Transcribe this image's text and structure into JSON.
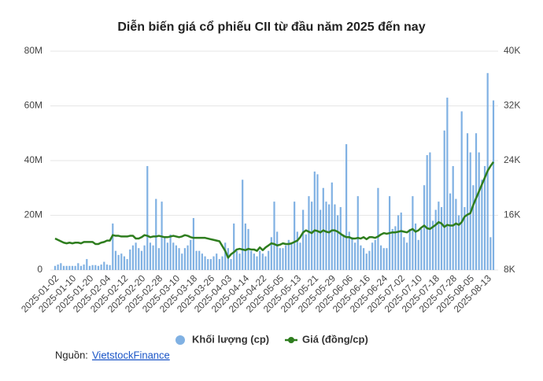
{
  "chart_data": {
    "type": "combo",
    "title": "Diễn biến giá cổ phiếu CII từ đầu năm 2025 đến nay",
    "categories": [
      "2025-01-02",
      null,
      null,
      null,
      null,
      null,
      "2025-01-10",
      null,
      null,
      null,
      null,
      null,
      "2025-01-20",
      null,
      null,
      null,
      null,
      null,
      "2025-02-04",
      null,
      null,
      null,
      null,
      null,
      "2025-02-12",
      null,
      null,
      null,
      null,
      null,
      "2025-02-20",
      null,
      null,
      null,
      null,
      null,
      "2025-02-28",
      null,
      null,
      null,
      null,
      null,
      "2025-03-10",
      null,
      null,
      null,
      null,
      null,
      "2025-03-18",
      null,
      null,
      null,
      null,
      null,
      "2025-03-26",
      null,
      null,
      null,
      null,
      null,
      "2025-04-03",
      null,
      null,
      null,
      null,
      null,
      "2025-04-14",
      null,
      null,
      null,
      null,
      null,
      "2025-04-22",
      null,
      null,
      null,
      null,
      null,
      "2025-05-05",
      null,
      null,
      null,
      null,
      null,
      "2025-05-13",
      null,
      null,
      null,
      null,
      null,
      "2025-05-21",
      null,
      null,
      null,
      null,
      null,
      "2025-05-29",
      null,
      null,
      null,
      null,
      null,
      "2025-06-06",
      null,
      null,
      null,
      null,
      null,
      "2025-06-16",
      null,
      null,
      null,
      null,
      null,
      "2025-06-24",
      null,
      null,
      null,
      null,
      null,
      "2025-07-02",
      null,
      null,
      null,
      null,
      null,
      "2025-07-10",
      null,
      null,
      null,
      null,
      null,
      "2025-07-18",
      null,
      null,
      null,
      null,
      null,
      "2025-07-28",
      null,
      null,
      null,
      null,
      null,
      "2025-08-05",
      null,
      null,
      null,
      null,
      null,
      "2025-08-13",
      null,
      null
    ],
    "series": [
      {
        "name": "Khối lượng (cp)",
        "type": "bar",
        "color": "#80b1e3",
        "values": [
          1500000,
          2000000,
          2500000,
          1500000,
          1500000,
          1500000,
          1500000,
          1500000,
          2500000,
          1500000,
          2000000,
          4000000,
          1500000,
          1800000,
          1800000,
          1500000,
          2000000,
          3000000,
          2000000,
          1800000,
          17000000,
          7000000,
          5500000,
          6000000,
          5000000,
          4000000,
          7500000,
          9000000,
          10000000,
          8000000,
          7000000,
          9000000,
          38000000,
          10000000,
          9000000,
          26000000,
          8000000,
          25000000,
          12000000,
          10000000,
          13000000,
          10000000,
          9000000,
          8000000,
          6000000,
          8000000,
          9000000,
          11000000,
          19000000,
          7000000,
          7000000,
          6000000,
          5000000,
          4000000,
          4000000,
          5000000,
          6000000,
          4000000,
          5000000,
          10000000,
          8000000,
          4000000,
          17000000,
          7000000,
          6000000,
          33000000,
          17000000,
          15000000,
          7000000,
          6000000,
          5000000,
          7000000,
          6000000,
          5000000,
          7000000,
          12000000,
          25000000,
          14000000,
          8000000,
          8000000,
          9000000,
          11000000,
          10000000,
          25000000,
          14000000,
          10000000,
          22000000,
          13000000,
          27000000,
          25000000,
          36000000,
          35000000,
          22000000,
          30000000,
          25000000,
          24000000,
          32000000,
          24000000,
          20000000,
          23000000,
          13000000,
          46000000,
          14000000,
          12000000,
          10000000,
          27000000,
          9000000,
          8000000,
          6000000,
          7000000,
          10000000,
          11000000,
          30000000,
          9000000,
          8000000,
          8000000,
          27000000,
          15000000,
          16000000,
          20000000,
          21000000,
          12000000,
          10000000,
          15000000,
          27000000,
          17000000,
          11000000,
          15000000,
          31000000,
          42000000,
          43000000,
          18000000,
          22000000,
          25000000,
          23000000,
          51000000,
          63000000,
          28000000,
          38000000,
          26000000,
          20000000,
          58000000,
          23000000,
          50000000,
          43000000,
          31000000,
          50000000,
          43000000,
          33000000,
          38000000,
          72000000,
          12000000,
          62000000
        ]
      },
      {
        "name": "Giá (đồng/cp)",
        "type": "line",
        "axis": "y2",
        "color": "#2e7d1e",
        "values": [
          12600,
          12400,
          12200,
          12000,
          11900,
          12000,
          11900,
          12000,
          12000,
          11900,
          12100,
          12100,
          12100,
          12100,
          11800,
          11800,
          12000,
          12100,
          12300,
          12300,
          13100,
          13000,
          13000,
          12900,
          12900,
          12900,
          13000,
          13000,
          12600,
          12600,
          12800,
          13100,
          13000,
          12800,
          12900,
          12900,
          13000,
          12900,
          12800,
          12800,
          12900,
          13000,
          12900,
          12800,
          12900,
          13100,
          13000,
          12800,
          12700,
          12700,
          12700,
          12700,
          12700,
          12600,
          12500,
          12400,
          12300,
          12200,
          11500,
          10800,
          9800,
          10300,
          10600,
          11000,
          11100,
          11000,
          10900,
          11100,
          11000,
          11000,
          10800,
          11300,
          10900,
          11300,
          11600,
          11900,
          11800,
          11600,
          11700,
          11900,
          11800,
          11800,
          11900,
          12100,
          12300,
          12800,
          13500,
          13800,
          13600,
          13400,
          13800,
          13700,
          13500,
          13800,
          13600,
          13500,
          13800,
          13800,
          13600,
          13300,
          13000,
          12800,
          12800,
          12600,
          12600,
          12700,
          12600,
          12800,
          12500,
          12800,
          12800,
          12700,
          12900,
          13200,
          13400,
          13300,
          13400,
          13500,
          13500,
          13600,
          13700,
          13600,
          13500,
          13800,
          14000,
          13600,
          13800,
          14200,
          14500,
          14100,
          14000,
          14300,
          14600,
          15000,
          14800,
          14300,
          14600,
          14500,
          14500,
          14800,
          14600,
          15000,
          15800,
          16100,
          16300,
          17500,
          18500,
          19500,
          20500,
          21500,
          22500,
          23200,
          23800
        ]
      }
    ],
    "ylim": [
      0,
      80000000
    ],
    "yticks": [
      {
        "value": 0,
        "label": "0"
      },
      {
        "value": 20000000,
        "label": "20M"
      },
      {
        "value": 40000000,
        "label": "40M"
      },
      {
        "value": 60000000,
        "label": "60M"
      },
      {
        "value": 80000000,
        "label": "80M"
      }
    ],
    "y2lim": [
      8000,
      40000
    ],
    "y2ticks": [
      {
        "value": 8000,
        "label": "8K"
      },
      {
        "value": 16000,
        "label": "16K"
      },
      {
        "value": 24000,
        "label": "24K"
      },
      {
        "value": 32000,
        "label": "32K"
      },
      {
        "value": 40000,
        "label": "40K"
      }
    ],
    "grid": true,
    "source": "Nguồn:",
    "source_link": "VietstockFinance"
  }
}
